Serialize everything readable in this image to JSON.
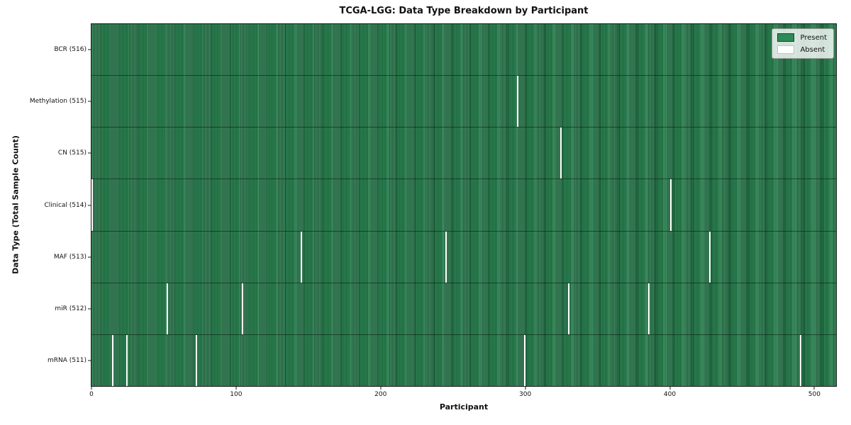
{
  "chart_data": {
    "type": "heatmap",
    "title": "TCGA-LGG: Data Type Breakdown by Participant",
    "xlabel": "Participant",
    "ylabel": "Data Type (Total Sample Count)",
    "n_participants": 516,
    "xlim": [
      -0.5,
      515.5
    ],
    "x_ticks": [
      0,
      100,
      200,
      300,
      400,
      500
    ],
    "grid": false,
    "rows": [
      {
        "label": "BCR (516)",
        "data_type": "BCR",
        "present_count": 516,
        "absent_participants": []
      },
      {
        "label": "Methylation (515)",
        "data_type": "Methylation",
        "present_count": 515,
        "absent_participants": [
          295
        ]
      },
      {
        "label": "CN (515)",
        "data_type": "CN",
        "present_count": 515,
        "absent_participants": [
          325
        ]
      },
      {
        "label": "Clinical (514)",
        "data_type": "Clinical",
        "present_count": 514,
        "absent_participants": [
          0,
          401
        ]
      },
      {
        "label": "MAF (513)",
        "data_type": "MAF",
        "present_count": 513,
        "absent_participants": [
          145,
          245,
          428
        ]
      },
      {
        "label": "miR (512)",
        "data_type": "miR",
        "present_count": 512,
        "absent_participants": [
          52,
          104,
          330,
          386
        ]
      },
      {
        "label": "mRNA (511)",
        "data_type": "mRNA",
        "present_count": 511,
        "absent_participants": [
          14,
          24,
          72,
          300,
          491
        ]
      }
    ],
    "legend": {
      "position": "upper right",
      "entries": [
        {
          "label": "Present",
          "color": "#2e8b57"
        },
        {
          "label": "Absent",
          "color": "#ffffff"
        }
      ]
    },
    "colors": {
      "present": "#2e8b57",
      "present_edge": "#16472c",
      "absent": "#ffffff"
    }
  }
}
